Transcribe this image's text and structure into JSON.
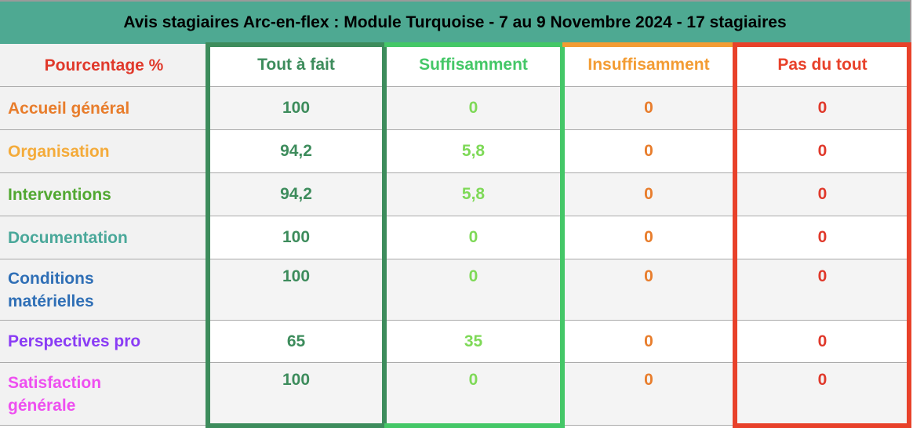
{
  "title": "Avis stagiaires Arc-en-flex : Module Turquoise - 7 au 9 Novembre 2024 - 17 stagiaires",
  "header": {
    "label": "Pourcentage %",
    "columns": [
      "Tout à fait",
      "Suffisamment",
      "Insuffisamment",
      "Pas du tout"
    ]
  },
  "colors": {
    "title_bg": "#4ea992",
    "tout": "#3d8c5c",
    "suff": "#44c767",
    "suff_text": "#7ed957",
    "insuff": "#f39c33",
    "insuff_text": "#e87d2c",
    "pas": "#e8412a"
  },
  "rows": [
    {
      "label": "Accueil général",
      "color": "#e87d2c",
      "values": [
        "100",
        "0",
        "0",
        "0"
      ]
    },
    {
      "label": "Organisation",
      "color": "#f4ab3a",
      "values": [
        "94,2",
        "5,8",
        "0",
        "0"
      ]
    },
    {
      "label": "Interventions",
      "color": "#52a832",
      "values": [
        "94,2",
        "5,8",
        "0",
        "0"
      ]
    },
    {
      "label": "Documentation",
      "color": "#4aa89a",
      "values": [
        "100",
        "0",
        "0",
        "0"
      ]
    },
    {
      "label": "Conditions matérielles",
      "color": "#2f6fb6",
      "values": [
        "100",
        "0",
        "0",
        "0"
      ]
    },
    {
      "label": "Perspectives pro",
      "color": "#8a3cf5",
      "values": [
        "65",
        "35",
        "0",
        "0"
      ]
    },
    {
      "label": "Satisfaction générale",
      "color": "#ee4ff0",
      "values": [
        "100",
        "0",
        "0",
        "0"
      ]
    }
  ]
}
